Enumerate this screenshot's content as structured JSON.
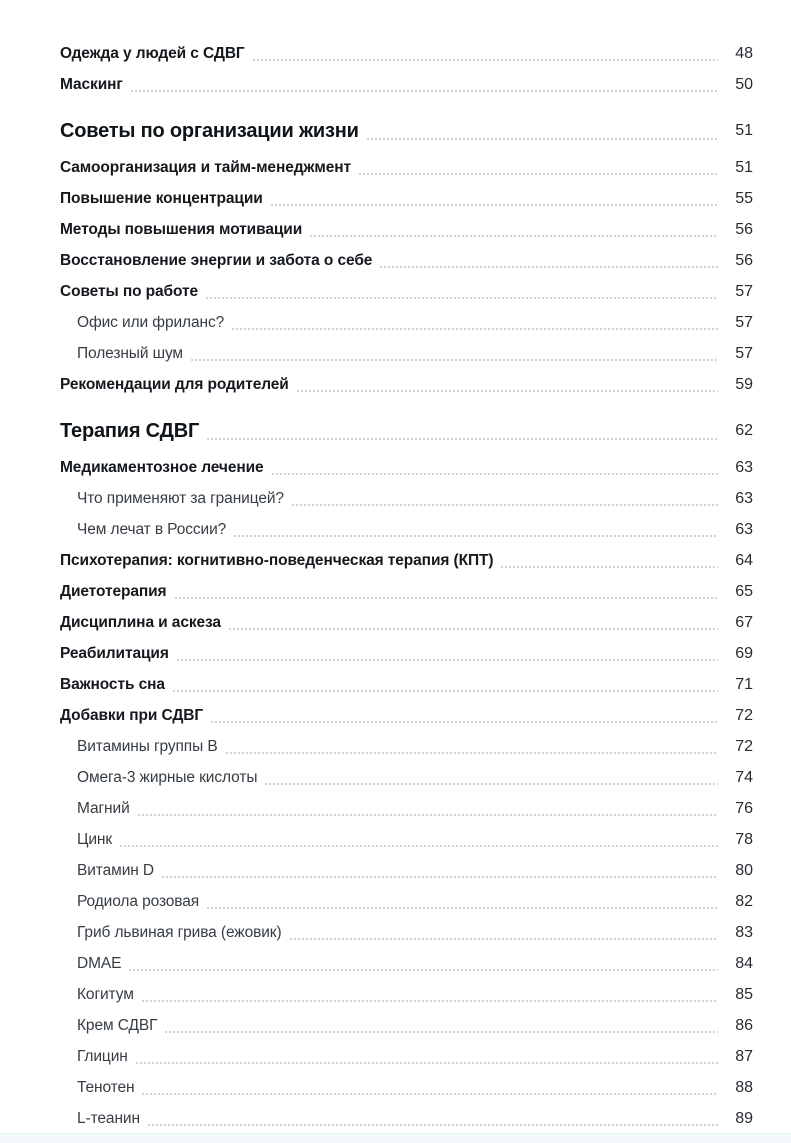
{
  "toc": {
    "entries": [
      {
        "level": "item",
        "title": "Одежда у людей с СДВГ",
        "page": "48"
      },
      {
        "level": "item",
        "title": "Маскинг",
        "page": "50"
      },
      {
        "level": "h1",
        "title": "Советы по организации жизни",
        "page": "51"
      },
      {
        "level": "item",
        "title": "Самоорганизация и тайм-менеджмент",
        "page": "51"
      },
      {
        "level": "item",
        "title": "Повышение концентрации",
        "page": "55"
      },
      {
        "level": "item",
        "title": "Методы повышения мотивации",
        "page": "56"
      },
      {
        "level": "item",
        "title": "Восстановление энергии и забота о себе",
        "page": "56"
      },
      {
        "level": "item",
        "title": "Советы по работе",
        "page": "57"
      },
      {
        "level": "sub",
        "title": "Офис или фриланс?",
        "page": "57"
      },
      {
        "level": "sub",
        "title": "Полезный шум",
        "page": "57"
      },
      {
        "level": "item",
        "title": "Рекомендации для родителей",
        "page": "59"
      },
      {
        "level": "h1",
        "title": "Терапия СДВГ",
        "page": "62"
      },
      {
        "level": "item",
        "title": "Медикаментозное лечение",
        "page": "63"
      },
      {
        "level": "sub",
        "title": "Что применяют за границей?",
        "page": "63"
      },
      {
        "level": "sub",
        "title": "Чем лечат в России?",
        "page": "63"
      },
      {
        "level": "item",
        "title": "Психотерапия: когнитивно-поведенческая терапия (КПТ)",
        "page": "64"
      },
      {
        "level": "item",
        "title": "Диетотерапия",
        "page": "65"
      },
      {
        "level": "item",
        "title": "Дисциплина и аскеза",
        "page": "67"
      },
      {
        "level": "item",
        "title": "Реабилитация",
        "page": "69"
      },
      {
        "level": "item",
        "title": "Важность сна",
        "page": "71"
      },
      {
        "level": "item",
        "title": "Добавки при СДВГ",
        "page": "72"
      },
      {
        "level": "sub",
        "title": "Витамины группы B",
        "page": "72"
      },
      {
        "level": "sub",
        "title": "Омега-3 жирные кислоты",
        "page": "74"
      },
      {
        "level": "sub",
        "title": "Магний",
        "page": "76"
      },
      {
        "level": "sub",
        "title": "Цинк",
        "page": "78"
      },
      {
        "level": "sub",
        "title": "Витамин D",
        "page": "80"
      },
      {
        "level": "sub",
        "title": "Родиола розовая",
        "page": "82"
      },
      {
        "level": "sub",
        "title": "Гриб львиная грива (ежовик)",
        "page": "83"
      },
      {
        "level": "sub",
        "title": "DMAE",
        "page": "84"
      },
      {
        "level": "sub",
        "title": "Когитум",
        "page": "85"
      },
      {
        "level": "sub",
        "title": "Крем СДВГ",
        "page": "86"
      },
      {
        "level": "sub",
        "title": "Глицин",
        "page": "87"
      },
      {
        "level": "sub",
        "title": "Тенотен",
        "page": "88"
      },
      {
        "level": "sub",
        "title": "L-теанин",
        "page": "89"
      }
    ]
  },
  "colors": {
    "leader_dots": "#c7d0d8",
    "footer_strip": "#f2f8fb"
  }
}
